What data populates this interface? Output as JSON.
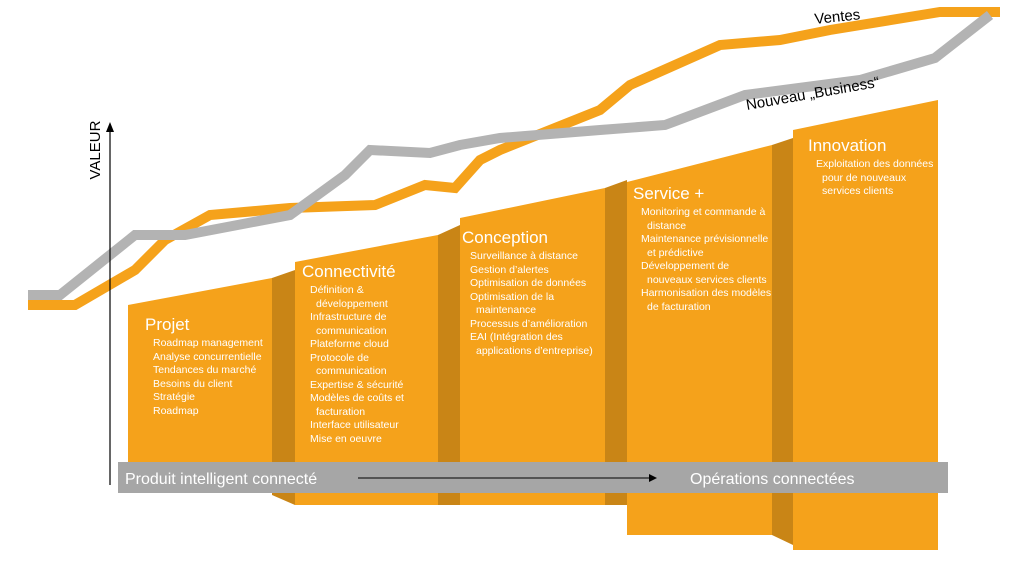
{
  "axis_label": "VALEUR",
  "lines": [
    {
      "label": "Ventes"
    },
    {
      "label": "Nouveau „Business“"
    }
  ],
  "stages": [
    {
      "title": "Projet",
      "items": [
        "Roadmap management",
        "Analyse concurrentielle",
        "Tendances du marché",
        "Besoins du client",
        "Stratégie",
        "Roadmap"
      ]
    },
    {
      "title": "Connectivité",
      "items": [
        "Définition & développement",
        "Infrastructure de communication",
        "Plateforme cloud",
        "Protocole de communication",
        "Expertise & sécurité",
        "Modèles de coûts et facturation",
        "Interface utilisateur",
        "Mise en oeuvre"
      ]
    },
    {
      "title": "Conception",
      "items": [
        "Surveillance à distance",
        "Gestion d’alertes",
        "Optimisation de données",
        "Optimisation de la maintenance",
        "Processus d’amélioration",
        "EAI (Intégration des applications d’entreprise)"
      ]
    },
    {
      "title": "Service +",
      "items": [
        "Monitoring et commande à distance",
        "Maintenance prévisionnelle et prédictive",
        "Développement de nouveaux services clients",
        "Harmonisation des modèles de facturation"
      ]
    },
    {
      "title": "Innovation",
      "items": [
        "Exploitation des données pour de nouveaux services clients"
      ]
    }
  ],
  "bottom_bar": {
    "left": "Produit intelligent connecté",
    "right": "Opérations connectées"
  }
}
